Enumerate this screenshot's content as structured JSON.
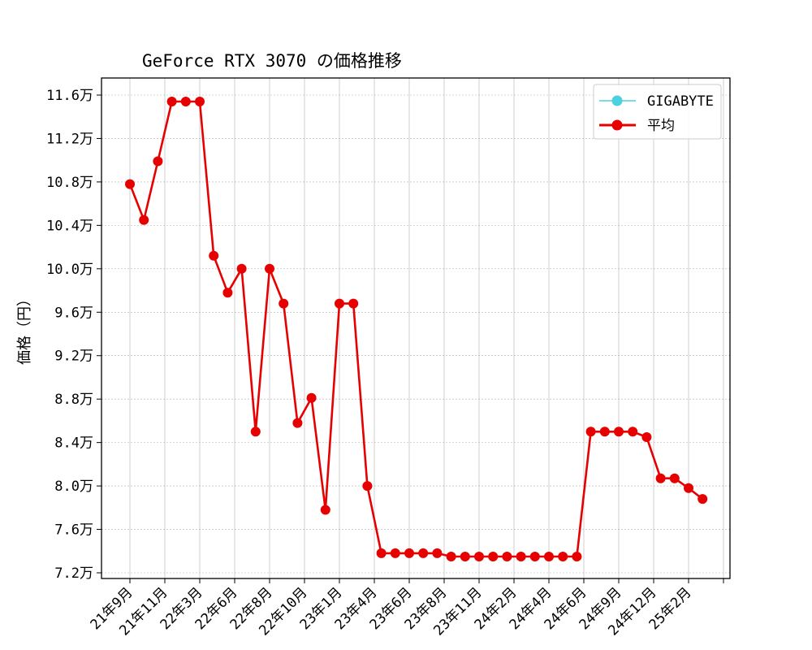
{
  "chart_data": {
    "type": "line",
    "title": "GeForce RTX 3070 の価格推移",
    "xlabel": "",
    "ylabel": "価格（円）",
    "y_unit": "円",
    "ylim": [
      72000,
      117000
    ],
    "yticks": [
      72000,
      76000,
      80000,
      84000,
      88000,
      92000,
      96000,
      100000,
      104000,
      108000,
      112000,
      116000
    ],
    "ytick_labels": [
      "7.2万",
      "7.6万",
      "8.0万",
      "8.4万",
      "8.8万",
      "9.2万",
      "9.6万",
      "10.0万",
      "10.4万",
      "10.8万",
      "11.2万",
      "11.6万"
    ],
    "xtick_labels": [
      "21年9月",
      "21年11月",
      "22年3月",
      "22年6月",
      "22年8月",
      "22年10月",
      "23年1月",
      "23年4月",
      "23年6月",
      "23年8月",
      "23年11月",
      "24年2月",
      "24年4月",
      "24年6月",
      "24年9月",
      "24年12月",
      "25年2月"
    ],
    "grid": true,
    "legend_position": "top-right",
    "series": [
      {
        "name": "GIGABYTE",
        "color": "#4dd0e1",
        "marker": "circle",
        "values": []
      },
      {
        "name": "平均",
        "color": "#e60000",
        "marker": "circle",
        "values": [
          107800,
          104500,
          109900,
          115400,
          115400,
          115400,
          101200,
          97800,
          100000,
          85000,
          100000,
          96800,
          85800,
          88100,
          77800,
          96800,
          96800,
          80000,
          73800,
          73800,
          73800,
          73800,
          73800,
          73500,
          73500,
          73500,
          73500,
          73500,
          73500,
          73500,
          73500,
          73500,
          73500,
          85000,
          85000,
          85000,
          85000,
          84500,
          80700,
          80700,
          79800,
          78800
        ]
      }
    ]
  }
}
